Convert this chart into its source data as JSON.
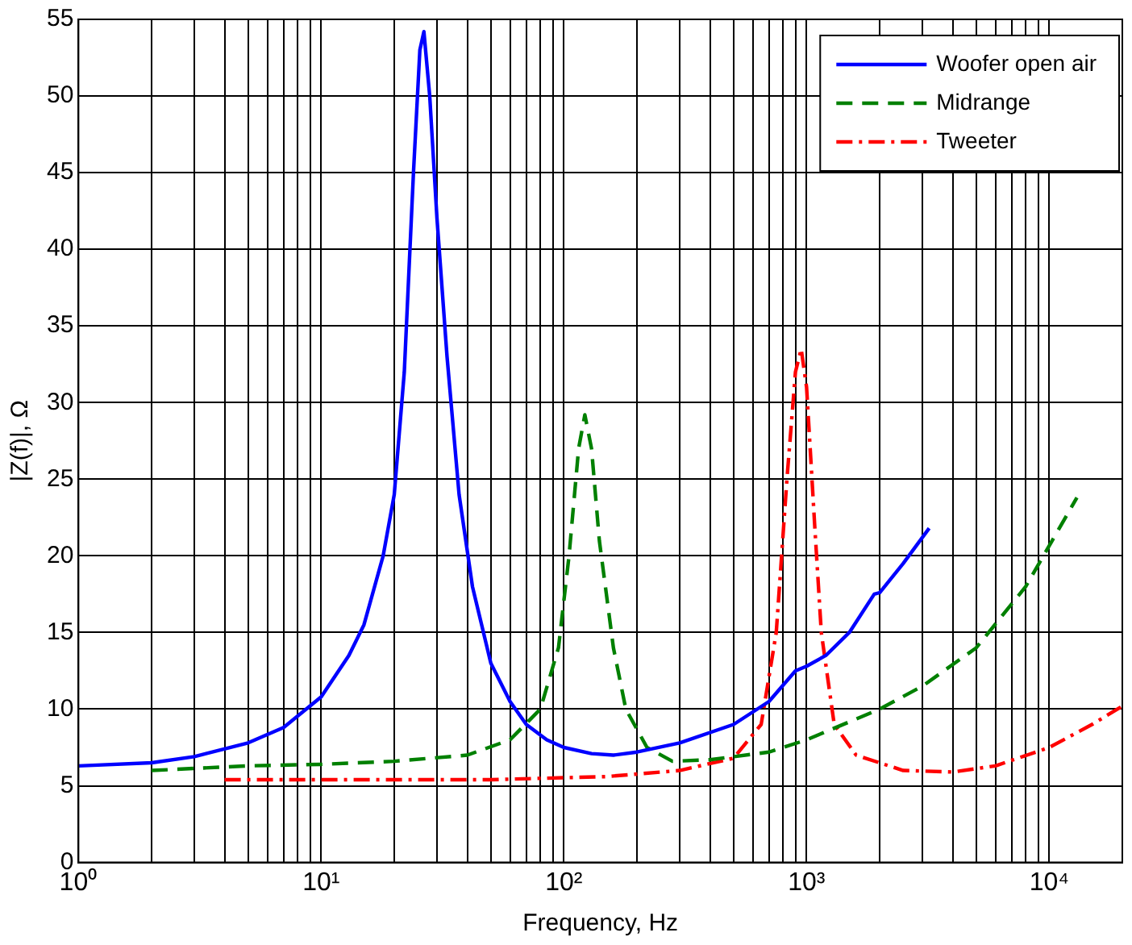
{
  "chart_data": {
    "type": "line",
    "xlabel": "Frequency, Hz",
    "ylabel": "|Z(f)|, Ω",
    "log": "x",
    "grid": true,
    "legend": "top right",
    "marker": "none",
    "xlim": [
      1,
      20000
    ],
    "xticks": [
      {
        "value": 1,
        "label": "10⁰"
      },
      {
        "value": 2,
        "label": null
      },
      {
        "value": 3,
        "label": null
      },
      {
        "value": 4,
        "label": null
      },
      {
        "value": 5,
        "label": null
      },
      {
        "value": 6,
        "label": null
      },
      {
        "value": 7,
        "label": null
      },
      {
        "value": 8,
        "label": null
      },
      {
        "value": 9,
        "label": null
      },
      {
        "value": 10,
        "label": "10¹"
      },
      {
        "value": 20,
        "label": null
      },
      {
        "value": 30,
        "label": null
      },
      {
        "value": 40,
        "label": null
      },
      {
        "value": 50,
        "label": null
      },
      {
        "value": 60,
        "label": null
      },
      {
        "value": 70,
        "label": null
      },
      {
        "value": 80,
        "label": null
      },
      {
        "value": 90,
        "label": null
      },
      {
        "value": 100,
        "label": "10²"
      },
      {
        "value": 200,
        "label": null
      },
      {
        "value": 300,
        "label": null
      },
      {
        "value": 400,
        "label": null
      },
      {
        "value": 500,
        "label": null
      },
      {
        "value": 600,
        "label": null
      },
      {
        "value": 700,
        "label": null
      },
      {
        "value": 800,
        "label": null
      },
      {
        "value": 900,
        "label": null
      },
      {
        "value": 1000,
        "label": "10³"
      },
      {
        "value": 2000,
        "label": null
      },
      {
        "value": 3000,
        "label": null
      },
      {
        "value": 4000,
        "label": null
      },
      {
        "value": 5000,
        "label": null
      },
      {
        "value": 6000,
        "label": null
      },
      {
        "value": 7000,
        "label": null
      },
      {
        "value": 8000,
        "label": null
      },
      {
        "value": 9000,
        "label": null
      },
      {
        "value": 10000,
        "label": "10⁴"
      },
      {
        "value": 20000,
        "label": null
      }
    ],
    "ylim": [
      0,
      55
    ],
    "yticks": [
      0,
      5,
      10,
      15,
      20,
      25,
      30,
      35,
      40,
      45,
      50,
      55
    ],
    "series": [
      {
        "name": "Woofer open air",
        "color": "#0000ff",
        "line_style": "solid",
        "x": [
          1,
          2,
          3,
          5,
          7,
          10,
          13,
          15,
          18,
          20,
          22,
          24,
          25.5,
          26.5,
          28,
          30,
          33,
          37,
          42,
          50,
          60,
          70,
          85,
          100,
          130,
          160,
          200,
          300,
          500,
          700,
          900,
          1000,
          1200,
          1500,
          1900,
          2000,
          2500,
          3200
        ],
        "values": [
          6.3,
          6.5,
          6.9,
          7.8,
          8.8,
          10.8,
          13.5,
          15.5,
          20,
          24,
          32,
          45,
          53,
          54.2,
          50,
          42,
          33,
          24,
          18,
          13,
          10.5,
          9,
          8,
          7.5,
          7.1,
          7,
          7.2,
          7.8,
          9,
          10.5,
          12.5,
          12.8,
          13.5,
          15,
          17.5,
          17.6,
          19.5,
          21.8
        ]
      },
      {
        "name": "Midrange",
        "color": "#008000",
        "line_style": "dashed",
        "x": [
          2,
          5,
          10,
          20,
          40,
          60,
          80,
          95,
          105,
          115,
          122,
          130,
          140,
          160,
          180,
          220,
          280,
          400,
          700,
          1000,
          2000,
          3000,
          5000,
          8000,
          13000
        ],
        "values": [
          6,
          6.3,
          6.4,
          6.6,
          7,
          8,
          10,
          14,
          20,
          27,
          29.2,
          27,
          21,
          14,
          10,
          7.5,
          6.6,
          6.7,
          7.2,
          8,
          10,
          11.5,
          14,
          18,
          23.8
        ]
      },
      {
        "name": "Tweeter",
        "color": "#ff0000",
        "line_style": "dashdot",
        "x": [
          4,
          10,
          50,
          150,
          300,
          500,
          650,
          750,
          830,
          900,
          950,
          1000,
          1080,
          1150,
          1300,
          1600,
          2500,
          4000,
          6000,
          10000,
          15000,
          20000
        ],
        "values": [
          5.4,
          5.4,
          5.4,
          5.6,
          6,
          6.8,
          9,
          15,
          25,
          32,
          33.5,
          31,
          22,
          15,
          9,
          7,
          6,
          5.9,
          6.3,
          7.5,
          9,
          10.2
        ]
      }
    ]
  }
}
